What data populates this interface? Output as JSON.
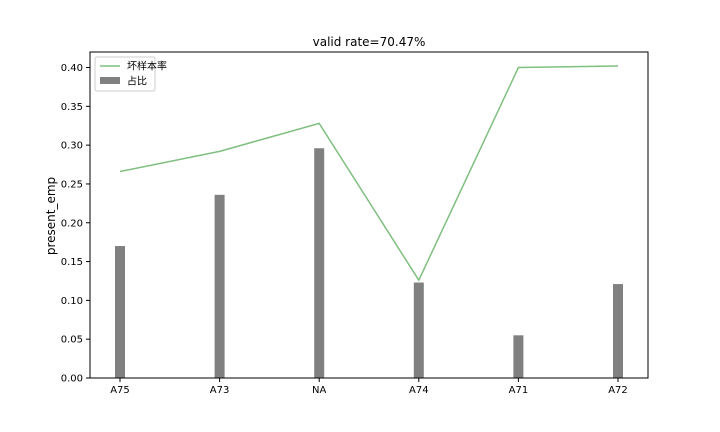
{
  "chart_data": {
    "type": "bar",
    "title": "valid rate=70.47%",
    "xlabel": "",
    "ylabel": "present_emp",
    "categories": [
      "A75",
      "A73",
      "NA",
      "A74",
      "A71",
      "A72"
    ],
    "ylim": [
      0,
      0.42
    ],
    "yticks": [
      "0.00",
      "0.05",
      "0.10",
      "0.15",
      "0.20",
      "0.25",
      "0.30",
      "0.35",
      "0.40"
    ],
    "grid": false,
    "legend_placement": "top-left",
    "series": [
      {
        "kind": "line",
        "name": "坏样本率",
        "color": "#7fbf7f",
        "values": [
          0.266,
          0.292,
          0.328,
          0.126,
          0.4,
          0.402
        ]
      },
      {
        "kind": "bar",
        "name": "占比",
        "color": "#808080",
        "values": [
          0.17,
          0.236,
          0.296,
          0.123,
          0.055,
          0.121
        ]
      }
    ]
  }
}
